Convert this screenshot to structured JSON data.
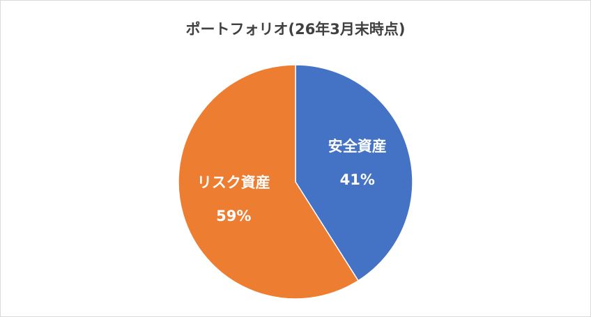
{
  "chart_data": {
    "type": "pie",
    "title": "ポートフォリオ(26年3月末時点)",
    "categories": [
      "安全資産",
      "リスク資産"
    ],
    "values": [
      41,
      59
    ],
    "value_labels": [
      "41%",
      "59%"
    ],
    "colors": [
      "#4472c4",
      "#ed7d31"
    ]
  }
}
